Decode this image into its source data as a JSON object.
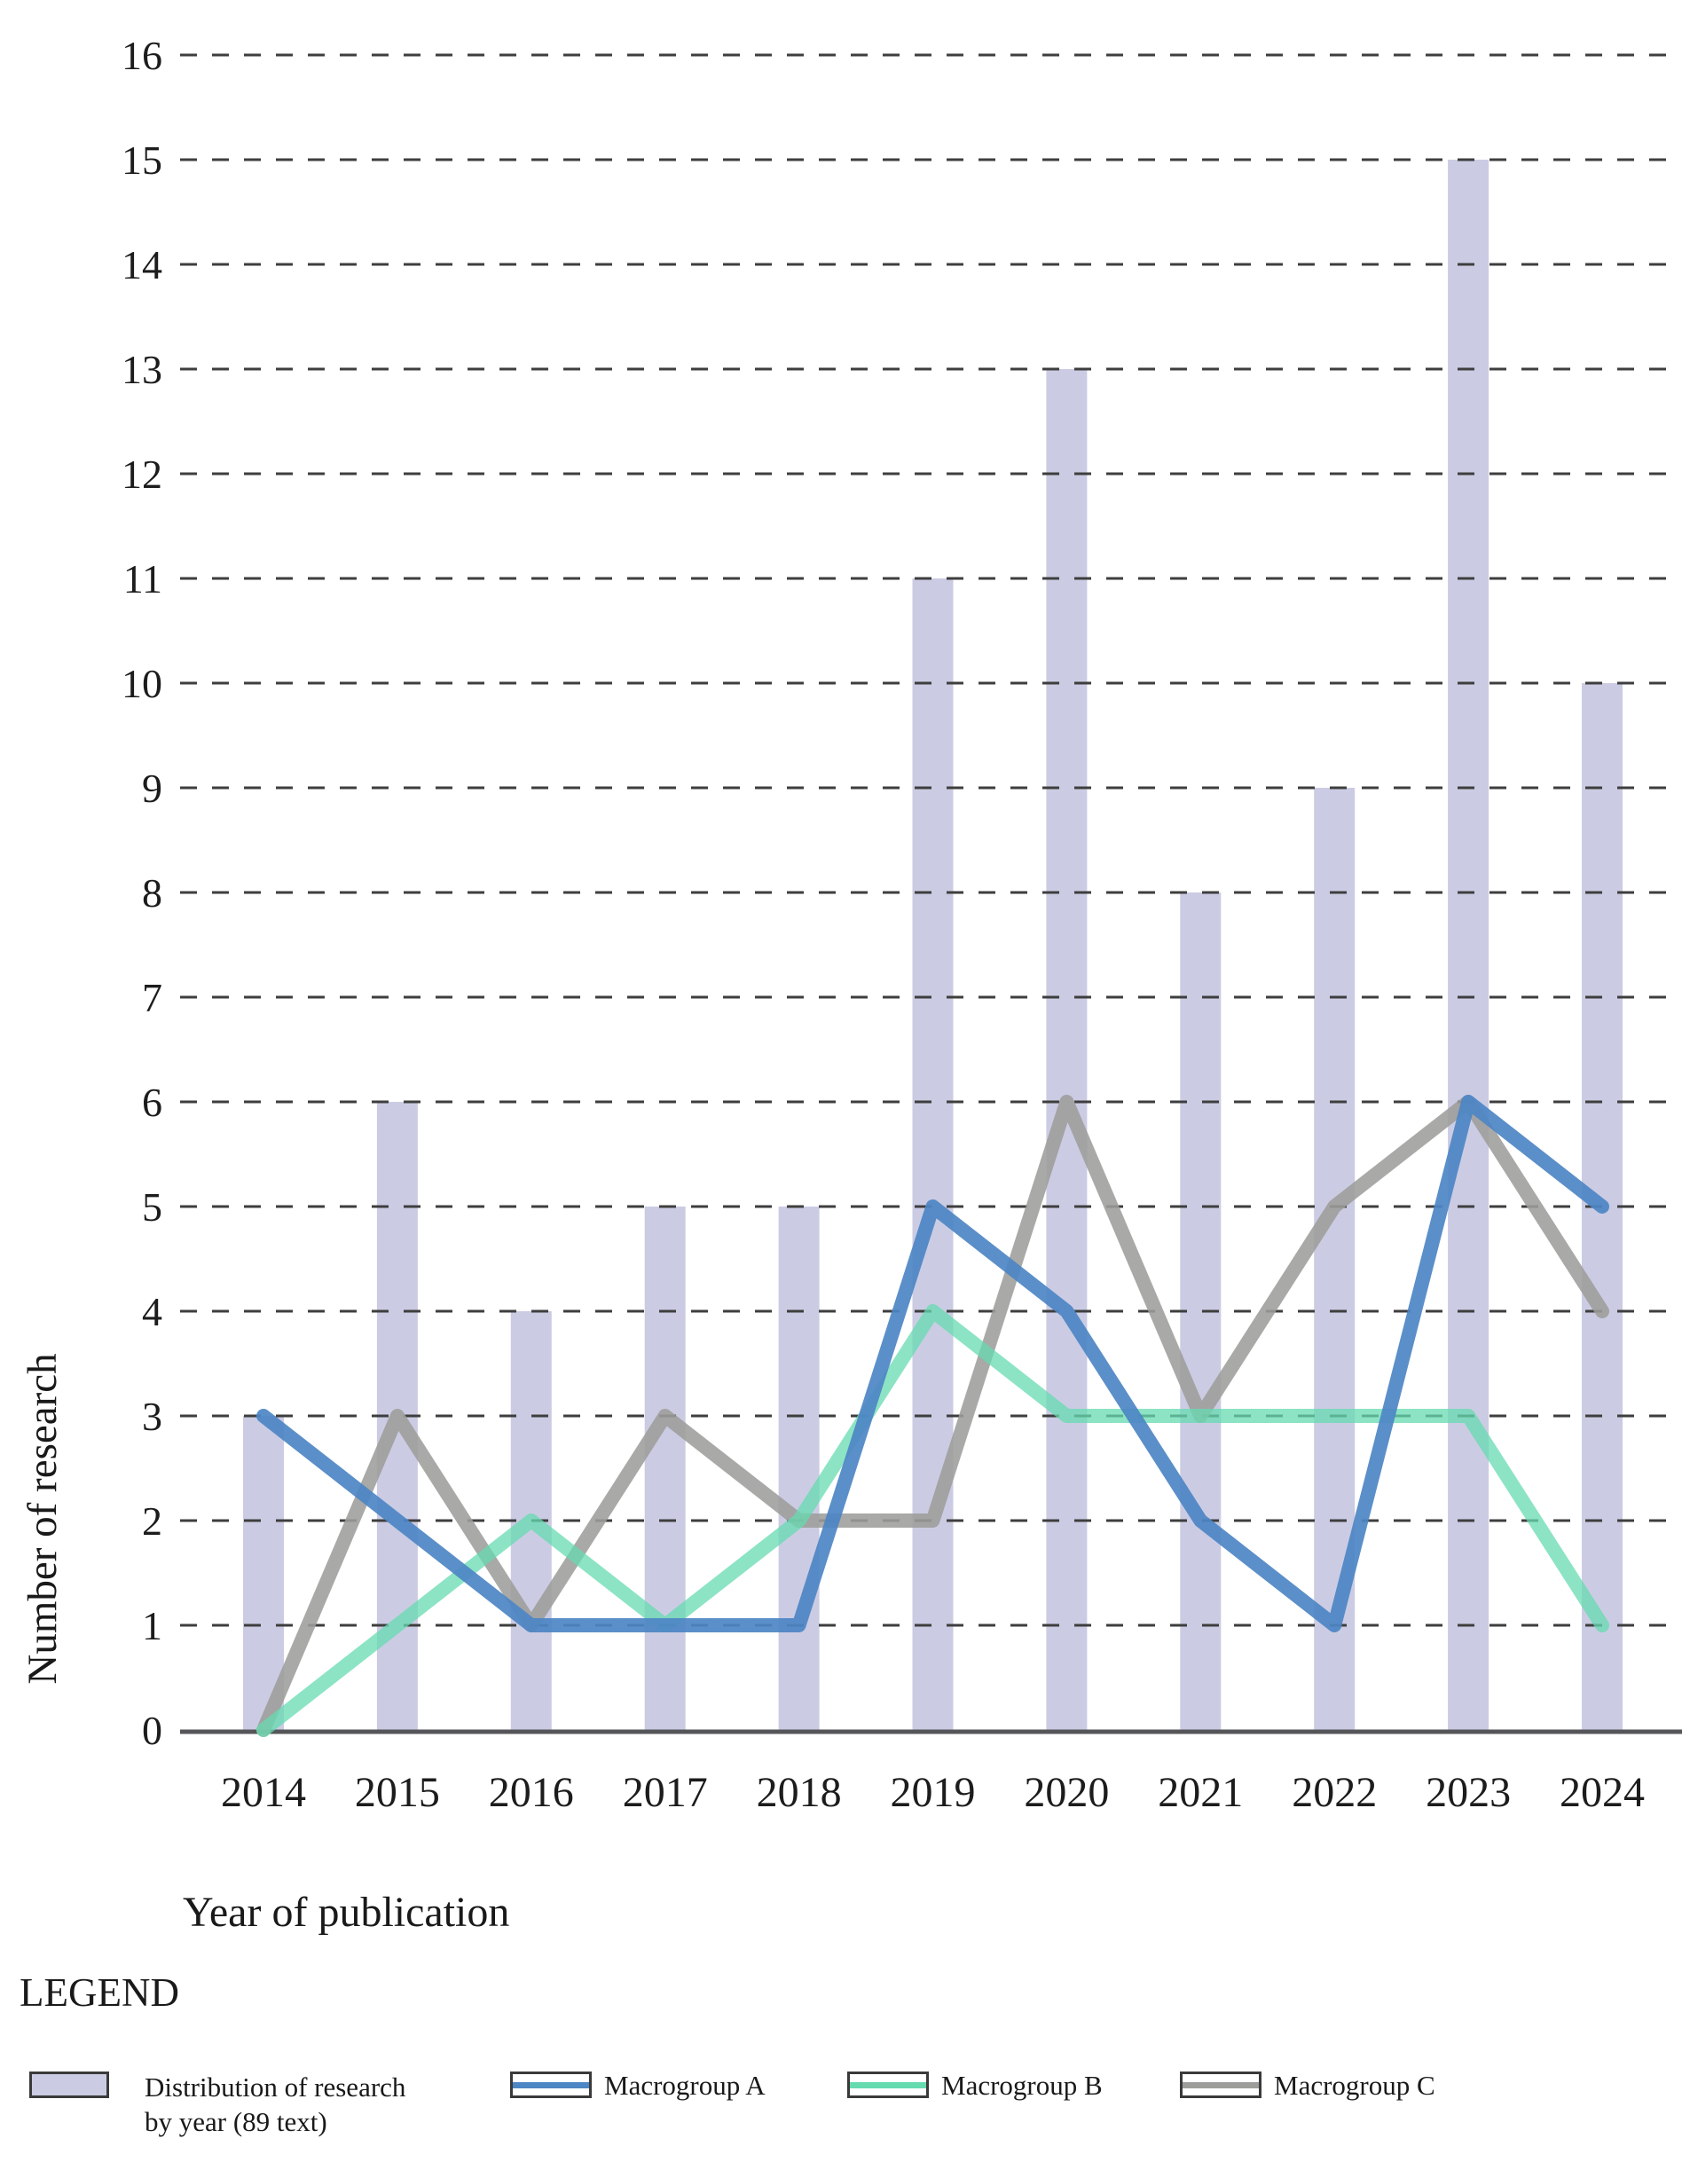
{
  "chart_data": {
    "type": "bar",
    "title": "",
    "categories": [
      "2014",
      "2015",
      "2016",
      "2017",
      "2018",
      "2019",
      "2020",
      "2021",
      "2022",
      "2023",
      "2024"
    ],
    "bar_series": {
      "name": "Distribution of research by year (89 text)",
      "values": [
        3,
        6,
        4,
        5,
        5,
        11,
        13,
        8,
        9,
        15,
        10
      ],
      "color": "#cbcce3"
    },
    "line_series": [
      {
        "name": "Macrogroup C",
        "values": [
          0,
          3,
          1,
          3,
          2,
          2,
          6,
          3,
          5,
          6,
          4
        ],
        "color": "#9d9d9b",
        "opacity": 0.88
      },
      {
        "name": "Macrogroup B",
        "values": [
          0,
          1,
          2,
          1,
          2,
          4,
          3,
          3,
          3,
          3,
          1
        ],
        "color": "#66dbb0",
        "opacity": 0.75
      },
      {
        "name": "Macrogroup A",
        "values": [
          3,
          2,
          1,
          1,
          1,
          5,
          4,
          2,
          1,
          6,
          5
        ],
        "color": "#4d86c4",
        "opacity": 0.92
      }
    ],
    "xlabel": "Year of publication",
    "ylabel": "Number of research",
    "ylim": [
      0,
      16
    ],
    "ytick_step": 1,
    "grid": "horizontal-dashed",
    "grid_color": "#3e3e3e",
    "axis_color": "#55565a",
    "legend_position": "bottom"
  },
  "axis": {
    "y_title": "Number of research",
    "x_title": "Year of publication"
  },
  "legend": {
    "heading": "LEGEND",
    "items": [
      {
        "swatch": "bar",
        "label_line1": "Distribution of research",
        "label_line2": "by year (89 text)",
        "color": "#cbcce3"
      },
      {
        "swatch": "line",
        "label": "Macrogroup A",
        "color": "#4d86c4"
      },
      {
        "swatch": "line",
        "label": "Macrogroup B",
        "color": "#66dbb0"
      },
      {
        "swatch": "line",
        "label": "Macrogroup C",
        "color": "#9d9d9b"
      }
    ]
  }
}
